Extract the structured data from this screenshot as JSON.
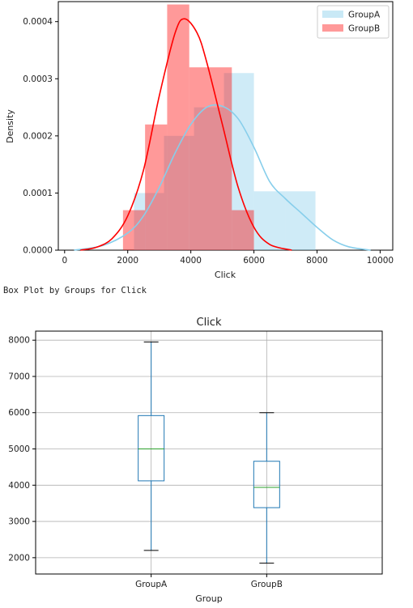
{
  "caption": "Box Plot by Groups for Click",
  "colors": {
    "groupA": "#87ceeb",
    "groupB": "#ff0000",
    "box": "#1f77b4",
    "median": "#2ca02c",
    "grid": "#b0b0b0"
  },
  "chart_data": [
    {
      "type": "histogram",
      "title": "",
      "xlabel": "Click",
      "ylabel": "Density",
      "xlim": [
        -200,
        10400
      ],
      "ylim": [
        0,
        0.000435
      ],
      "xticks": [
        0,
        2000,
        4000,
        6000,
        8000,
        10000
      ],
      "xtick_labels": [
        "0",
        "2000",
        "4000",
        "6000",
        "8000",
        "10000"
      ],
      "yticks": [
        0,
        0.0001,
        0.0002,
        0.0003,
        0.0004
      ],
      "ytick_labels": [
        "0.0000",
        "0.0001",
        "0.0002",
        "0.0003",
        "0.0004"
      ],
      "legend": {
        "placement": "top-right",
        "entries": [
          "GroupA",
          "GroupB"
        ]
      },
      "series": [
        {
          "name": "GroupA",
          "color": "#87ceeb",
          "bins": [
            {
              "x0": 2200,
              "x1": 3150,
              "density": 0.0001
            },
            {
              "x0": 3150,
              "x1": 4100,
              "density": 0.0002
            },
            {
              "x0": 4100,
              "x1": 5050,
              "density": 0.00025
            },
            {
              "x0": 5050,
              "x1": 6000,
              "density": 0.00031
            },
            {
              "x0": 6000,
              "x1": 7000,
              "density": 0.000103
            },
            {
              "x0": 7000,
              "x1": 7950,
              "density": 0.000103
            }
          ],
          "kde": [
            [
              300,
              0
            ],
            [
              1200,
              8e-06
            ],
            [
              2000,
              3e-05
            ],
            [
              2500,
              6e-05
            ],
            [
              3000,
              0.00011
            ],
            [
              3500,
              0.00017
            ],
            [
              4000,
              0.00022
            ],
            [
              4500,
              0.00025
            ],
            [
              5000,
              0.000252
            ],
            [
              5500,
              0.00023
            ],
            [
              6000,
              0.00018
            ],
            [
              6500,
              0.00012
            ],
            [
              7000,
              9e-05
            ],
            [
              7500,
              6.5e-05
            ],
            [
              8000,
              4e-05
            ],
            [
              8500,
              1.8e-05
            ],
            [
              9000,
              6e-06
            ],
            [
              9700,
              0
            ]
          ]
        },
        {
          "name": "GroupB",
          "color": "#ff0000",
          "bins": [
            {
              "x0": 1850,
              "x1": 2550,
              "density": 7e-05
            },
            {
              "x0": 2550,
              "x1": 3250,
              "density": 0.00022
            },
            {
              "x0": 3250,
              "x1": 3950,
              "density": 0.00043
            },
            {
              "x0": 3950,
              "x1": 4650,
              "density": 0.00032
            },
            {
              "x0": 4650,
              "x1": 5300,
              "density": 0.00032
            },
            {
              "x0": 5300,
              "x1": 6000,
              "density": 7e-05
            }
          ],
          "kde": [
            [
              500,
              0
            ],
            [
              1000,
              5e-06
            ],
            [
              1500,
              2e-05
            ],
            [
              2000,
              6e-05
            ],
            [
              2500,
              0.00014
            ],
            [
              3000,
              0.00027
            ],
            [
              3500,
              0.00038
            ],
            [
              3800,
              0.000405
            ],
            [
              4200,
              0.00038
            ],
            [
              4500,
              0.00033
            ],
            [
              5000,
              0.00022
            ],
            [
              5500,
              0.00011
            ],
            [
              6000,
              4e-05
            ],
            [
              6500,
              1e-05
            ],
            [
              7200,
              0
            ]
          ]
        }
      ]
    },
    {
      "type": "box",
      "title": "Click",
      "xlabel": "Group",
      "ylabel": "",
      "ylim": [
        1550,
        8250
      ],
      "yticks": [
        2000,
        3000,
        4000,
        5000,
        6000,
        7000,
        8000
      ],
      "ytick_labels": [
        "2000",
        "3000",
        "4000",
        "5000",
        "6000",
        "7000",
        "8000"
      ],
      "grid": true,
      "categories": [
        "GroupA",
        "GroupB"
      ],
      "boxes": [
        {
          "name": "GroupA",
          "whisker_low": 2200,
          "q1": 4120,
          "median": 5000,
          "q3": 5920,
          "whisker_high": 7950
        },
        {
          "name": "GroupB",
          "whisker_low": 1850,
          "q1": 3380,
          "median": 3940,
          "q3": 4660,
          "whisker_high": 6000
        }
      ]
    }
  ]
}
